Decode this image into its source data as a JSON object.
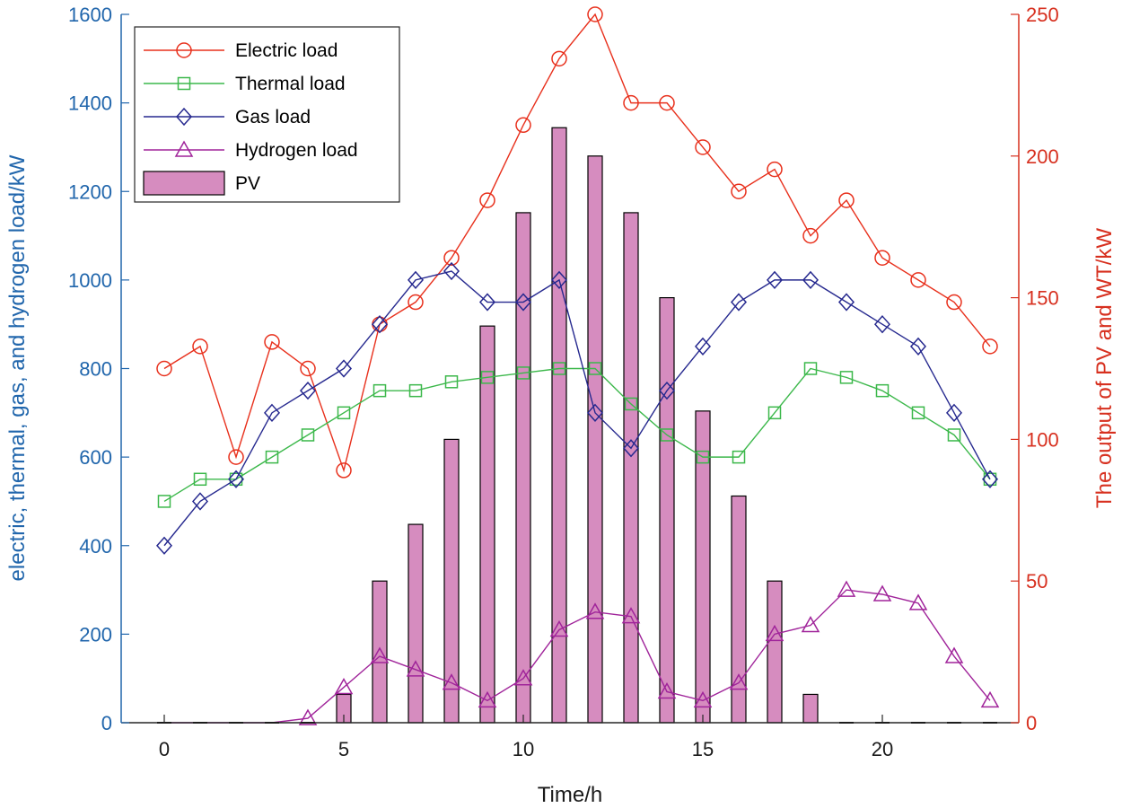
{
  "chart_data": {
    "type": "line",
    "title": "",
    "xlabel": "Time/h",
    "ylabel_left": "electric, thermal, gas, and hydrogen load/kW",
    "ylabel_right": "The output of PV and WT/kW",
    "x": [
      0,
      1,
      2,
      3,
      4,
      5,
      6,
      7,
      8,
      9,
      10,
      11,
      12,
      13,
      14,
      15,
      16,
      17,
      18,
      19,
      20,
      21,
      22,
      23
    ],
    "xlim": [
      -1.2,
      23.8
    ],
    "xticks": [
      0,
      5,
      10,
      15,
      20
    ],
    "ylim_left": [
      0,
      1600
    ],
    "yticks_left": [
      0,
      200,
      400,
      600,
      800,
      1000,
      1200,
      1400,
      1600
    ],
    "ylim_right": [
      0,
      250
    ],
    "yticks_right": [
      0,
      50,
      100,
      150,
      200,
      250
    ],
    "legend_position": "top-left",
    "series": [
      {
        "name": "Electric load",
        "axis": "left",
        "color": "#e8301c",
        "marker": "circle",
        "values": [
          800,
          850,
          600,
          860,
          800,
          570,
          900,
          950,
          1050,
          1180,
          1350,
          1500,
          1600,
          1400,
          1400,
          1300,
          1200,
          1250,
          1100,
          1180,
          1050,
          1000,
          950,
          850
        ]
      },
      {
        "name": "Thermal load",
        "axis": "left",
        "color": "#3cb84b",
        "marker": "square",
        "values": [
          500,
          550,
          550,
          600,
          650,
          700,
          750,
          750,
          770,
          780,
          790,
          800,
          800,
          720,
          650,
          600,
          600,
          700,
          800,
          780,
          750,
          700,
          650,
          550
        ]
      },
      {
        "name": "Gas load",
        "axis": "left",
        "color": "#26298f",
        "marker": "diamond",
        "values": [
          400,
          500,
          550,
          700,
          750,
          800,
          900,
          1000,
          1020,
          950,
          950,
          1000,
          700,
          620,
          750,
          850,
          950,
          1000,
          1000,
          950,
          900,
          850,
          700,
          550
        ]
      },
      {
        "name": "Hydrogen load",
        "axis": "left",
        "color": "#a0249a",
        "marker": "triangle",
        "values": [
          0,
          0,
          0,
          0,
          10,
          80,
          150,
          120,
          90,
          50,
          100,
          210,
          250,
          240,
          70,
          50,
          90,
          200,
          220,
          300,
          290,
          270,
          150,
          50
        ]
      },
      {
        "name": "PV",
        "axis": "right",
        "type": "bar",
        "color": "#d68cbf",
        "values": [
          0,
          0,
          0,
          0,
          0,
          10,
          50,
          70,
          100,
          140,
          180,
          210,
          200,
          180,
          150,
          110,
          80,
          50,
          10,
          0,
          0,
          0,
          0,
          0
        ]
      }
    ]
  },
  "colors": {
    "left_axis": "#2166ac",
    "right_axis": "#d7301f",
    "bar_fill": "#d68cbf",
    "bar_edge": "#000000"
  }
}
